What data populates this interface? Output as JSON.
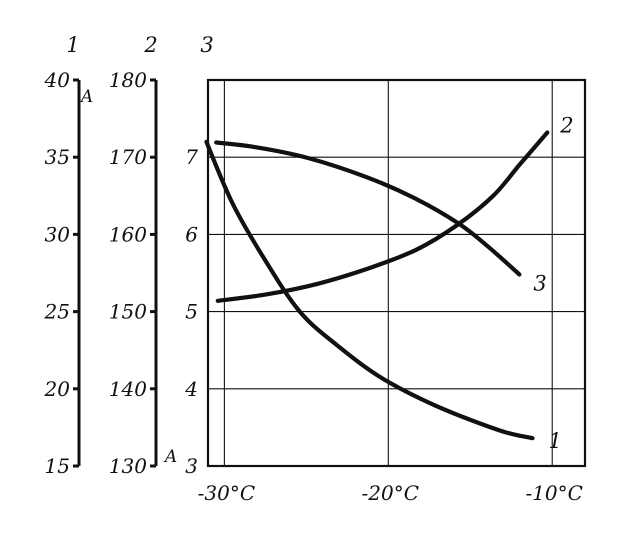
{
  "chart_data": {
    "type": "line",
    "x": {
      "ticks": [
        -30,
        -20,
        -10
      ],
      "tick_labels": [
        "-30°C",
        "-20°C",
        "-10°C"
      ],
      "range": [
        -31,
        -8
      ]
    },
    "y_axes": [
      {
        "header": "1",
        "unit": "A",
        "range": [
          15,
          40
        ],
        "ticks": [
          15,
          20,
          25,
          30,
          35,
          40
        ],
        "tick_labels": [
          "15",
          "20",
          "25",
          "30",
          "35",
          "40"
        ]
      },
      {
        "header": "2",
        "unit": "A",
        "range": [
          130,
          180
        ],
        "ticks": [
          130,
          140,
          150,
          160,
          170,
          180
        ],
        "tick_labels": [
          "130",
          "140",
          "150",
          "160",
          "170",
          "180"
        ]
      },
      {
        "header": "3",
        "unit": "",
        "range": [
          3,
          8
        ],
        "ticks": [
          3,
          4,
          5,
          6,
          7
        ],
        "tick_labels": [
          "3",
          "4",
          "5",
          "6",
          "7"
        ]
      }
    ],
    "grid": true,
    "series": [
      {
        "name": "1",
        "axis": 0,
        "points": [
          [
            -31.1,
            36.0
          ],
          [
            -29.5,
            32.0
          ],
          [
            -27.5,
            28.3
          ],
          [
            -25.4,
            25.0
          ],
          [
            -23.1,
            22.8
          ],
          [
            -20.4,
            20.7
          ],
          [
            -17.1,
            18.9
          ],
          [
            -13.2,
            17.3
          ],
          [
            -11.2,
            16.8
          ]
        ]
      },
      {
        "name": "2",
        "axis": 1,
        "points": [
          [
            -30.4,
            151.4
          ],
          [
            -27.5,
            152.2
          ],
          [
            -24.3,
            153.6
          ],
          [
            -21.2,
            155.6
          ],
          [
            -18.3,
            158.0
          ],
          [
            -15.8,
            161.2
          ],
          [
            -13.6,
            165.0
          ],
          [
            -12.0,
            169.0
          ],
          [
            -10.3,
            173.2
          ]
        ]
      },
      {
        "name": "3",
        "axis": 2,
        "points": [
          [
            -30.5,
            7.19
          ],
          [
            -28.1,
            7.13
          ],
          [
            -24.9,
            6.99
          ],
          [
            -21.3,
            6.74
          ],
          [
            -18.4,
            6.47
          ],
          [
            -15.7,
            6.14
          ],
          [
            -13.9,
            5.84
          ],
          [
            -12.0,
            5.48
          ]
        ]
      }
    ]
  }
}
